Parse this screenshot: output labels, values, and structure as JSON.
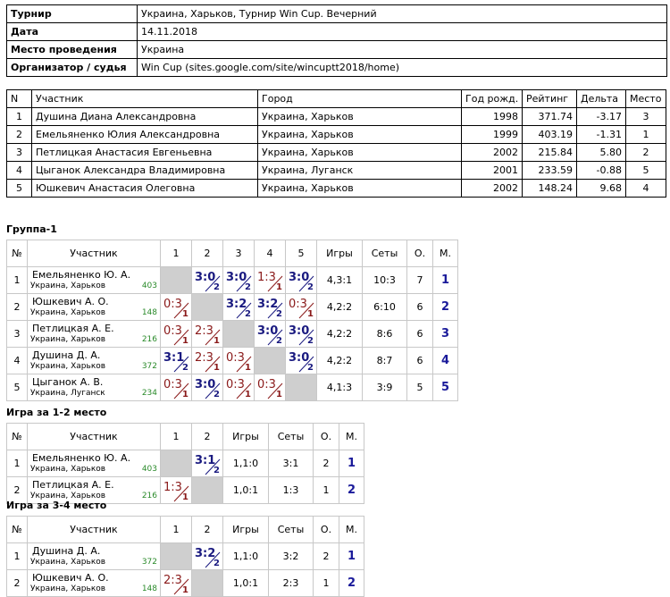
{
  "info": {
    "rows": [
      [
        "Турнир",
        "Украина, Харьков, Турнир Win Cup. Вечерний"
      ],
      [
        "Дата",
        "14.11.2018"
      ],
      [
        "Место проведения",
        "Украина"
      ],
      [
        "Организатор / судья",
        "Win Cup (sites.google.com/site/wincuptt2018/home)"
      ]
    ]
  },
  "participants": {
    "header": [
      "N",
      "Участник",
      "Город",
      "Год рожд.",
      "Рейтинг",
      "Дельта",
      "Место"
    ],
    "rows": [
      [
        "1",
        "Душина Диана Александровна",
        "Украина, Харьков",
        "1998",
        "371.74",
        "-3.17",
        "3"
      ],
      [
        "2",
        "Емельяненко Юлия Александровна",
        "Украина, Харьков",
        "1999",
        "403.19",
        "-1.31",
        "1"
      ],
      [
        "3",
        "Петлицкая Анастасия Евгеньевна",
        "Украина, Харьков",
        "2002",
        "215.84",
        "5.80",
        "2"
      ],
      [
        "4",
        "Цыганок Александра Владимировна",
        "Украина, Луганск",
        "2001",
        "233.59",
        "-0.88",
        "5"
      ],
      [
        "5",
        "Юшкевич Анастасия Олеговна",
        "Украина, Харьков",
        "2002",
        "148.24",
        "9.68",
        "4"
      ]
    ]
  },
  "groups": [
    {
      "title": "Группа-1",
      "header": [
        "№",
        "Участник",
        "1",
        "2",
        "3",
        "4",
        "5",
        "Игры",
        "Сеты",
        "О.",
        "М."
      ],
      "rows": [
        {
          "n": "1",
          "name": "Емельяненко Ю. А.",
          "city": "Украина, Харьков",
          "rating": "403",
          "cells": [
            null,
            {
              "score": "3:0",
              "points": "2"
            },
            {
              "score": "3:0",
              "points": "2"
            },
            {
              "score": "1:3",
              "points": "1"
            },
            {
              "score": "3:0",
              "points": "2"
            }
          ],
          "games": "4,3:1",
          "sets": "10:3",
          "o": "7",
          "m": "1"
        },
        {
          "n": "2",
          "name": "Юшкевич А. О.",
          "city": "Украина, Харьков",
          "rating": "148",
          "cells": [
            {
              "score": "0:3",
              "points": "1"
            },
            null,
            {
              "score": "3:2",
              "points": "2"
            },
            {
              "score": "3:2",
              "points": "2"
            },
            {
              "score": "0:3",
              "points": "1"
            }
          ],
          "games": "4,2:2",
          "sets": "6:10",
          "o": "6",
          "m": "2"
        },
        {
          "n": "3",
          "name": "Петлицкая А. Е.",
          "city": "Украина, Харьков",
          "rating": "216",
          "cells": [
            {
              "score": "0:3",
              "points": "1"
            },
            {
              "score": "2:3",
              "points": "1"
            },
            null,
            {
              "score": "3:0",
              "points": "2"
            },
            {
              "score": "3:0",
              "points": "2"
            }
          ],
          "games": "4,2:2",
          "sets": "8:6",
          "o": "6",
          "m": "3"
        },
        {
          "n": "4",
          "name": "Душина Д. А.",
          "city": "Украина, Харьков",
          "rating": "372",
          "cells": [
            {
              "score": "3:1",
              "points": "2"
            },
            {
              "score": "2:3",
              "points": "1"
            },
            {
              "score": "0:3",
              "points": "1"
            },
            null,
            {
              "score": "3:0",
              "points": "2"
            }
          ],
          "games": "4,2:2",
          "sets": "8:7",
          "o": "6",
          "m": "4"
        },
        {
          "n": "5",
          "name": "Цыганок А. В.",
          "city": "Украина, Луганск",
          "rating": "234",
          "cells": [
            {
              "score": "0:3",
              "points": "1"
            },
            {
              "score": "3:0",
              "points": "2"
            },
            {
              "score": "0:3",
              "points": "1"
            },
            {
              "score": "0:3",
              "points": "1"
            },
            null
          ],
          "games": "4,1:3",
          "sets": "3:9",
          "o": "5",
          "m": "5"
        }
      ]
    },
    {
      "title": "Игра за 1-2 место",
      "header": [
        "№",
        "Участник",
        "1",
        "2",
        "Игры",
        "Сеты",
        "О.",
        "М."
      ],
      "rows": [
        {
          "n": "1",
          "name": "Емельяненко Ю. А.",
          "city": "Украина, Харьков",
          "rating": "403",
          "cells": [
            null,
            {
              "score": "3:1",
              "points": "2"
            }
          ],
          "games": "1,1:0",
          "sets": "3:1",
          "o": "2",
          "m": "1"
        },
        {
          "n": "2",
          "name": "Петлицкая А. Е.",
          "city": "Украина, Харьков",
          "rating": "216",
          "cells": [
            {
              "score": "1:3",
              "points": "1"
            },
            null
          ],
          "games": "1,0:1",
          "sets": "1:3",
          "o": "1",
          "m": "2"
        }
      ]
    },
    {
      "title": "Игра за 3-4 место",
      "header": [
        "№",
        "Участник",
        "1",
        "2",
        "Игры",
        "Сеты",
        "О.",
        "М."
      ],
      "rows": [
        {
          "n": "1",
          "name": "Душина Д. А.",
          "city": "Украина, Харьков",
          "rating": "372",
          "cells": [
            null,
            {
              "score": "3:2",
              "points": "2"
            }
          ],
          "games": "1,1:0",
          "sets": "3:2",
          "o": "2",
          "m": "1"
        },
        {
          "n": "2",
          "name": "Юшкевич А. О.",
          "city": "Украина, Харьков",
          "rating": "148",
          "cells": [
            {
              "score": "2:3",
              "points": "1"
            },
            null
          ],
          "games": "1,0:1",
          "sets": "2:3",
          "o": "1",
          "m": "2"
        }
      ]
    }
  ]
}
